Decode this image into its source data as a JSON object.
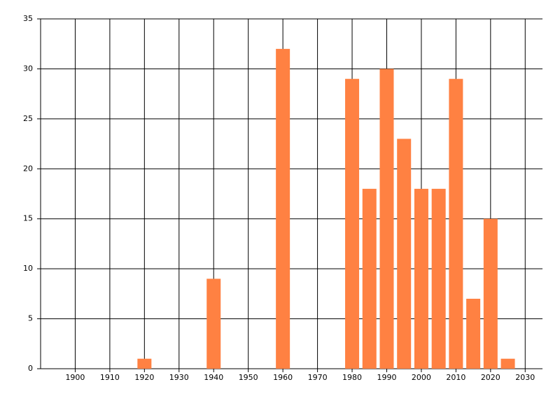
{
  "chart_data": {
    "type": "bar",
    "x": [
      1920,
      1940,
      1960,
      1980,
      1985,
      1990,
      1995,
      2000,
      2005,
      2010,
      2015,
      2020,
      2025
    ],
    "values": [
      1,
      9,
      32,
      29,
      18,
      30,
      23,
      18,
      18,
      29,
      7,
      15,
      1
    ],
    "color": "#ff8142",
    "xlim": [
      1890,
      2035
    ],
    "xticks": [
      1900,
      1910,
      1920,
      1930,
      1940,
      1950,
      1960,
      1970,
      1980,
      1990,
      2000,
      2010,
      2020,
      2030
    ],
    "ylim": [
      0,
      35
    ],
    "yticks": [
      0,
      5,
      10,
      15,
      20,
      25,
      30,
      35
    ],
    "grid": true
  }
}
